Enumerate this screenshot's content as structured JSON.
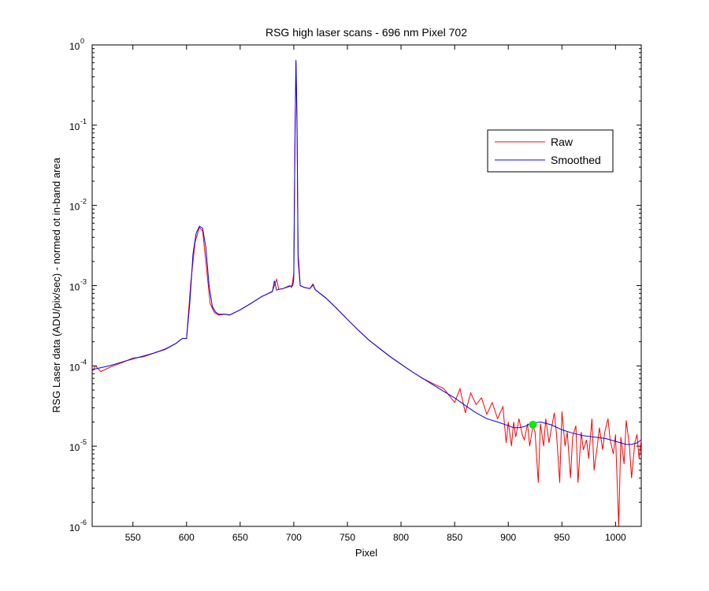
{
  "chart_data": {
    "type": "line",
    "title": "RSG high laser scans  - 696 nm    Pixel 702",
    "xlabel": "Pixel",
    "ylabel": "RSG Laser data (ADU/pix/sec) - normed ot in-band area",
    "x_scale": "linear",
    "y_scale": "log",
    "xlim": [
      512,
      1024
    ],
    "ylim": [
      1e-06,
      1
    ],
    "x_ticks": [
      550,
      600,
      650,
      700,
      750,
      800,
      850,
      900,
      950,
      1000
    ],
    "y_ticks": [
      {
        "base": "10",
        "exp": "-6",
        "value": 1e-06
      },
      {
        "base": "10",
        "exp": "-5",
        "value": 1e-05
      },
      {
        "base": "10",
        "exp": "-4",
        "value": 0.0001
      },
      {
        "base": "10",
        "exp": "-3",
        "value": 0.001
      },
      {
        "base": "10",
        "exp": "-2",
        "value": 0.01
      },
      {
        "base": "10",
        "exp": "-1",
        "value": 0.1
      },
      {
        "base": "10",
        "exp": "0",
        "value": 1
      }
    ],
    "grid": false,
    "legend_position": "top-right",
    "series": [
      {
        "name": "Raw",
        "color": "#ff0000",
        "x": [
          512,
          515,
          520,
          530,
          540,
          550,
          560,
          570,
          580,
          590,
          596,
          600,
          604,
          608,
          612,
          615,
          618,
          622,
          626,
          630,
          636,
          640,
          650,
          660,
          670,
          680,
          684,
          686,
          690,
          696,
          698,
          700,
          701,
          702,
          703,
          704,
          706,
          710,
          715,
          718,
          720,
          730,
          740,
          750,
          760,
          770,
          780,
          790,
          800,
          810,
          820,
          830,
          840,
          850,
          855,
          860,
          865,
          870,
          875,
          880,
          885,
          890,
          895,
          898,
          900,
          903,
          905,
          907,
          910,
          913,
          915,
          918,
          920,
          923,
          925,
          928,
          930,
          933,
          935,
          938,
          940,
          943,
          945,
          948,
          950,
          953,
          955,
          958,
          960,
          963,
          965,
          968,
          970,
          973,
          975,
          978,
          980,
          983,
          985,
          988,
          990,
          993,
          995,
          998,
          1000,
          1003,
          1005,
          1008,
          1010,
          1013,
          1015,
          1018,
          1020,
          1022,
          1024
        ],
        "y": [
          8.5e-05,
          0.0001,
          8.5e-05,
          9.8e-05,
          0.00011,
          0.000125,
          0.00013,
          0.000145,
          0.00016,
          0.00019,
          0.00022,
          0.00022,
          0.0011,
          0.0035,
          0.0053,
          0.0048,
          0.002,
          0.0006,
          0.00046,
          0.00043,
          0.00044,
          0.00043,
          0.0005,
          0.0006,
          0.00073,
          0.00085,
          0.0012,
          0.0009,
          0.00092,
          0.001,
          0.00095,
          0.0014,
          0.05,
          0.62,
          0.1,
          0.002,
          0.001,
          0.00095,
          0.00092,
          0.00105,
          0.00089,
          0.0007,
          0.00052,
          0.00038,
          0.00028,
          0.00021,
          0.000165,
          0.00013,
          0.000105,
          8.5e-05,
          7e-05,
          6e-05,
          5.2e-05,
          3.5e-05,
          5.2e-05,
          2.6e-05,
          4.6e-05,
          3.3e-05,
          4e-05,
          2.5e-05,
          3.5e-05,
          2.2e-05,
          3.1e-05,
          1.1e-05,
          2e-05,
          1e-05,
          2e-05,
          1.3e-05,
          2.2e-05,
          1.4e-05,
          1.2e-05,
          1.9e-05,
          1e-05,
          1.8e-05,
          1.5e-05,
          3.5e-06,
          1.9e-05,
          1e-05,
          2.2e-05,
          1.1e-05,
          1.6e-05,
          2.6e-05,
          1.4e-05,
          3.5e-06,
          2.7e-05,
          1e-05,
          1.5e-05,
          4e-06,
          1.3e-05,
          1.8e-05,
          3.5e-06,
          1.5e-05,
          9e-06,
          1.2e-05,
          7e-06,
          2.2e-05,
          5e-06,
          1e-05,
          1.7e-05,
          9e-06,
          1.5e-05,
          2.2e-05,
          1.2e-05,
          8e-06,
          1.4e-05,
          1e-06,
          1.3e-05,
          6e-06,
          2.1e-05,
          1e-05,
          4e-06,
          1.1e-05,
          1.4e-05,
          7e-06,
          1.2e-05
        ]
      },
      {
        "name": "Smoothed",
        "color": "#0000ff",
        "x": [
          512,
          520,
          530,
          540,
          550,
          560,
          570,
          580,
          590,
          596,
          600,
          603,
          606,
          609,
          612,
          615,
          618,
          621,
          624,
          627,
          630,
          636,
          640,
          650,
          660,
          670,
          680,
          682,
          684,
          686,
          690,
          696,
          699,
          700,
          701,
          702,
          703,
          704,
          706,
          710,
          715,
          718,
          720,
          730,
          740,
          750,
          760,
          770,
          780,
          790,
          800,
          810,
          820,
          830,
          840,
          850,
          860,
          870,
          880,
          890,
          900,
          905,
          910,
          915,
          920,
          930,
          940,
          950,
          960,
          970,
          980,
          990,
          1000,
          1010,
          1015,
          1020,
          1024
        ],
        "y": [
          9e-05,
          9.5e-05,
          0.000102,
          0.000112,
          0.000122,
          0.000133,
          0.000145,
          0.000162,
          0.00019,
          0.00022,
          0.00022,
          0.0006,
          0.0025,
          0.0045,
          0.0055,
          0.0052,
          0.003,
          0.001,
          0.00055,
          0.00047,
          0.00044,
          0.00044,
          0.00043,
          0.0005,
          0.0006,
          0.00073,
          0.00084,
          0.00115,
          0.00088,
          0.0009,
          0.00092,
          0.00098,
          0.001,
          0.0012,
          0.05,
          0.65,
          0.12,
          0.0025,
          0.001,
          0.00095,
          0.00092,
          0.00102,
          0.00089,
          0.0007,
          0.00052,
          0.00038,
          0.00028,
          0.00021,
          0.000165,
          0.00013,
          0.000105,
          8.5e-05,
          7e-05,
          5.8e-05,
          4.8e-05,
          4e-05,
          3.2e-05,
          2.6e-05,
          2.2e-05,
          2e-05,
          1.8e-05,
          1.7e-05,
          1.7e-05,
          1.75e-05,
          1.9e-05,
          2e-05,
          1.85e-05,
          1.6e-05,
          1.45e-05,
          1.35e-05,
          1.3e-05,
          1.25e-05,
          1.15e-05,
          1.05e-05,
          1.05e-05,
          1.1e-05,
          1.2e-05
        ]
      }
    ],
    "marker": {
      "x": 923,
      "y": 1.85e-05,
      "color": "#00ee00"
    }
  }
}
